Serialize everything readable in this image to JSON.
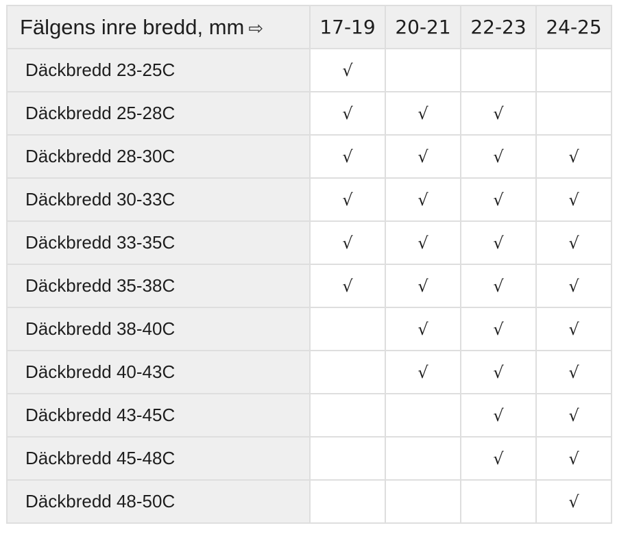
{
  "header": {
    "title": "Fälgens inre bredd, mm",
    "arrow_icon": "right-arrow-outline-icon",
    "columns": [
      "17-19",
      "20-21",
      "22-23",
      "24-25"
    ]
  },
  "check_symbol": "√",
  "rows": [
    {
      "label": "Däckbredd 23-25C",
      "cells": [
        "√",
        "",
        "",
        ""
      ]
    },
    {
      "label": "Däckbredd 25-28C",
      "cells": [
        "√",
        "√",
        "√",
        ""
      ]
    },
    {
      "label": "Däckbredd 28-30C",
      "cells": [
        "√",
        "√",
        "√",
        "√"
      ]
    },
    {
      "label": "Däckbredd 30-33C",
      "cells": [
        "√",
        "√",
        "√",
        "√"
      ]
    },
    {
      "label": "Däckbredd 33-35C",
      "cells": [
        "√",
        "√",
        "√",
        "√"
      ]
    },
    {
      "label": "Däckbredd 35-38C",
      "cells": [
        "√",
        "√",
        "√",
        "√"
      ]
    },
    {
      "label": "Däckbredd 38-40C",
      "cells": [
        "",
        "√",
        "√",
        "√"
      ]
    },
    {
      "label": "Däckbredd 40-43C",
      "cells": [
        "",
        "√",
        "√",
        "√"
      ]
    },
    {
      "label": "Däckbredd 43-45C",
      "cells": [
        "",
        "",
        "√",
        "√"
      ]
    },
    {
      "label": "Däckbredd 45-48C",
      "cells": [
        "",
        "",
        "√",
        "√"
      ]
    },
    {
      "label": "Däckbredd 48-50C",
      "cells": [
        "",
        "",
        "",
        "√"
      ]
    }
  ]
}
